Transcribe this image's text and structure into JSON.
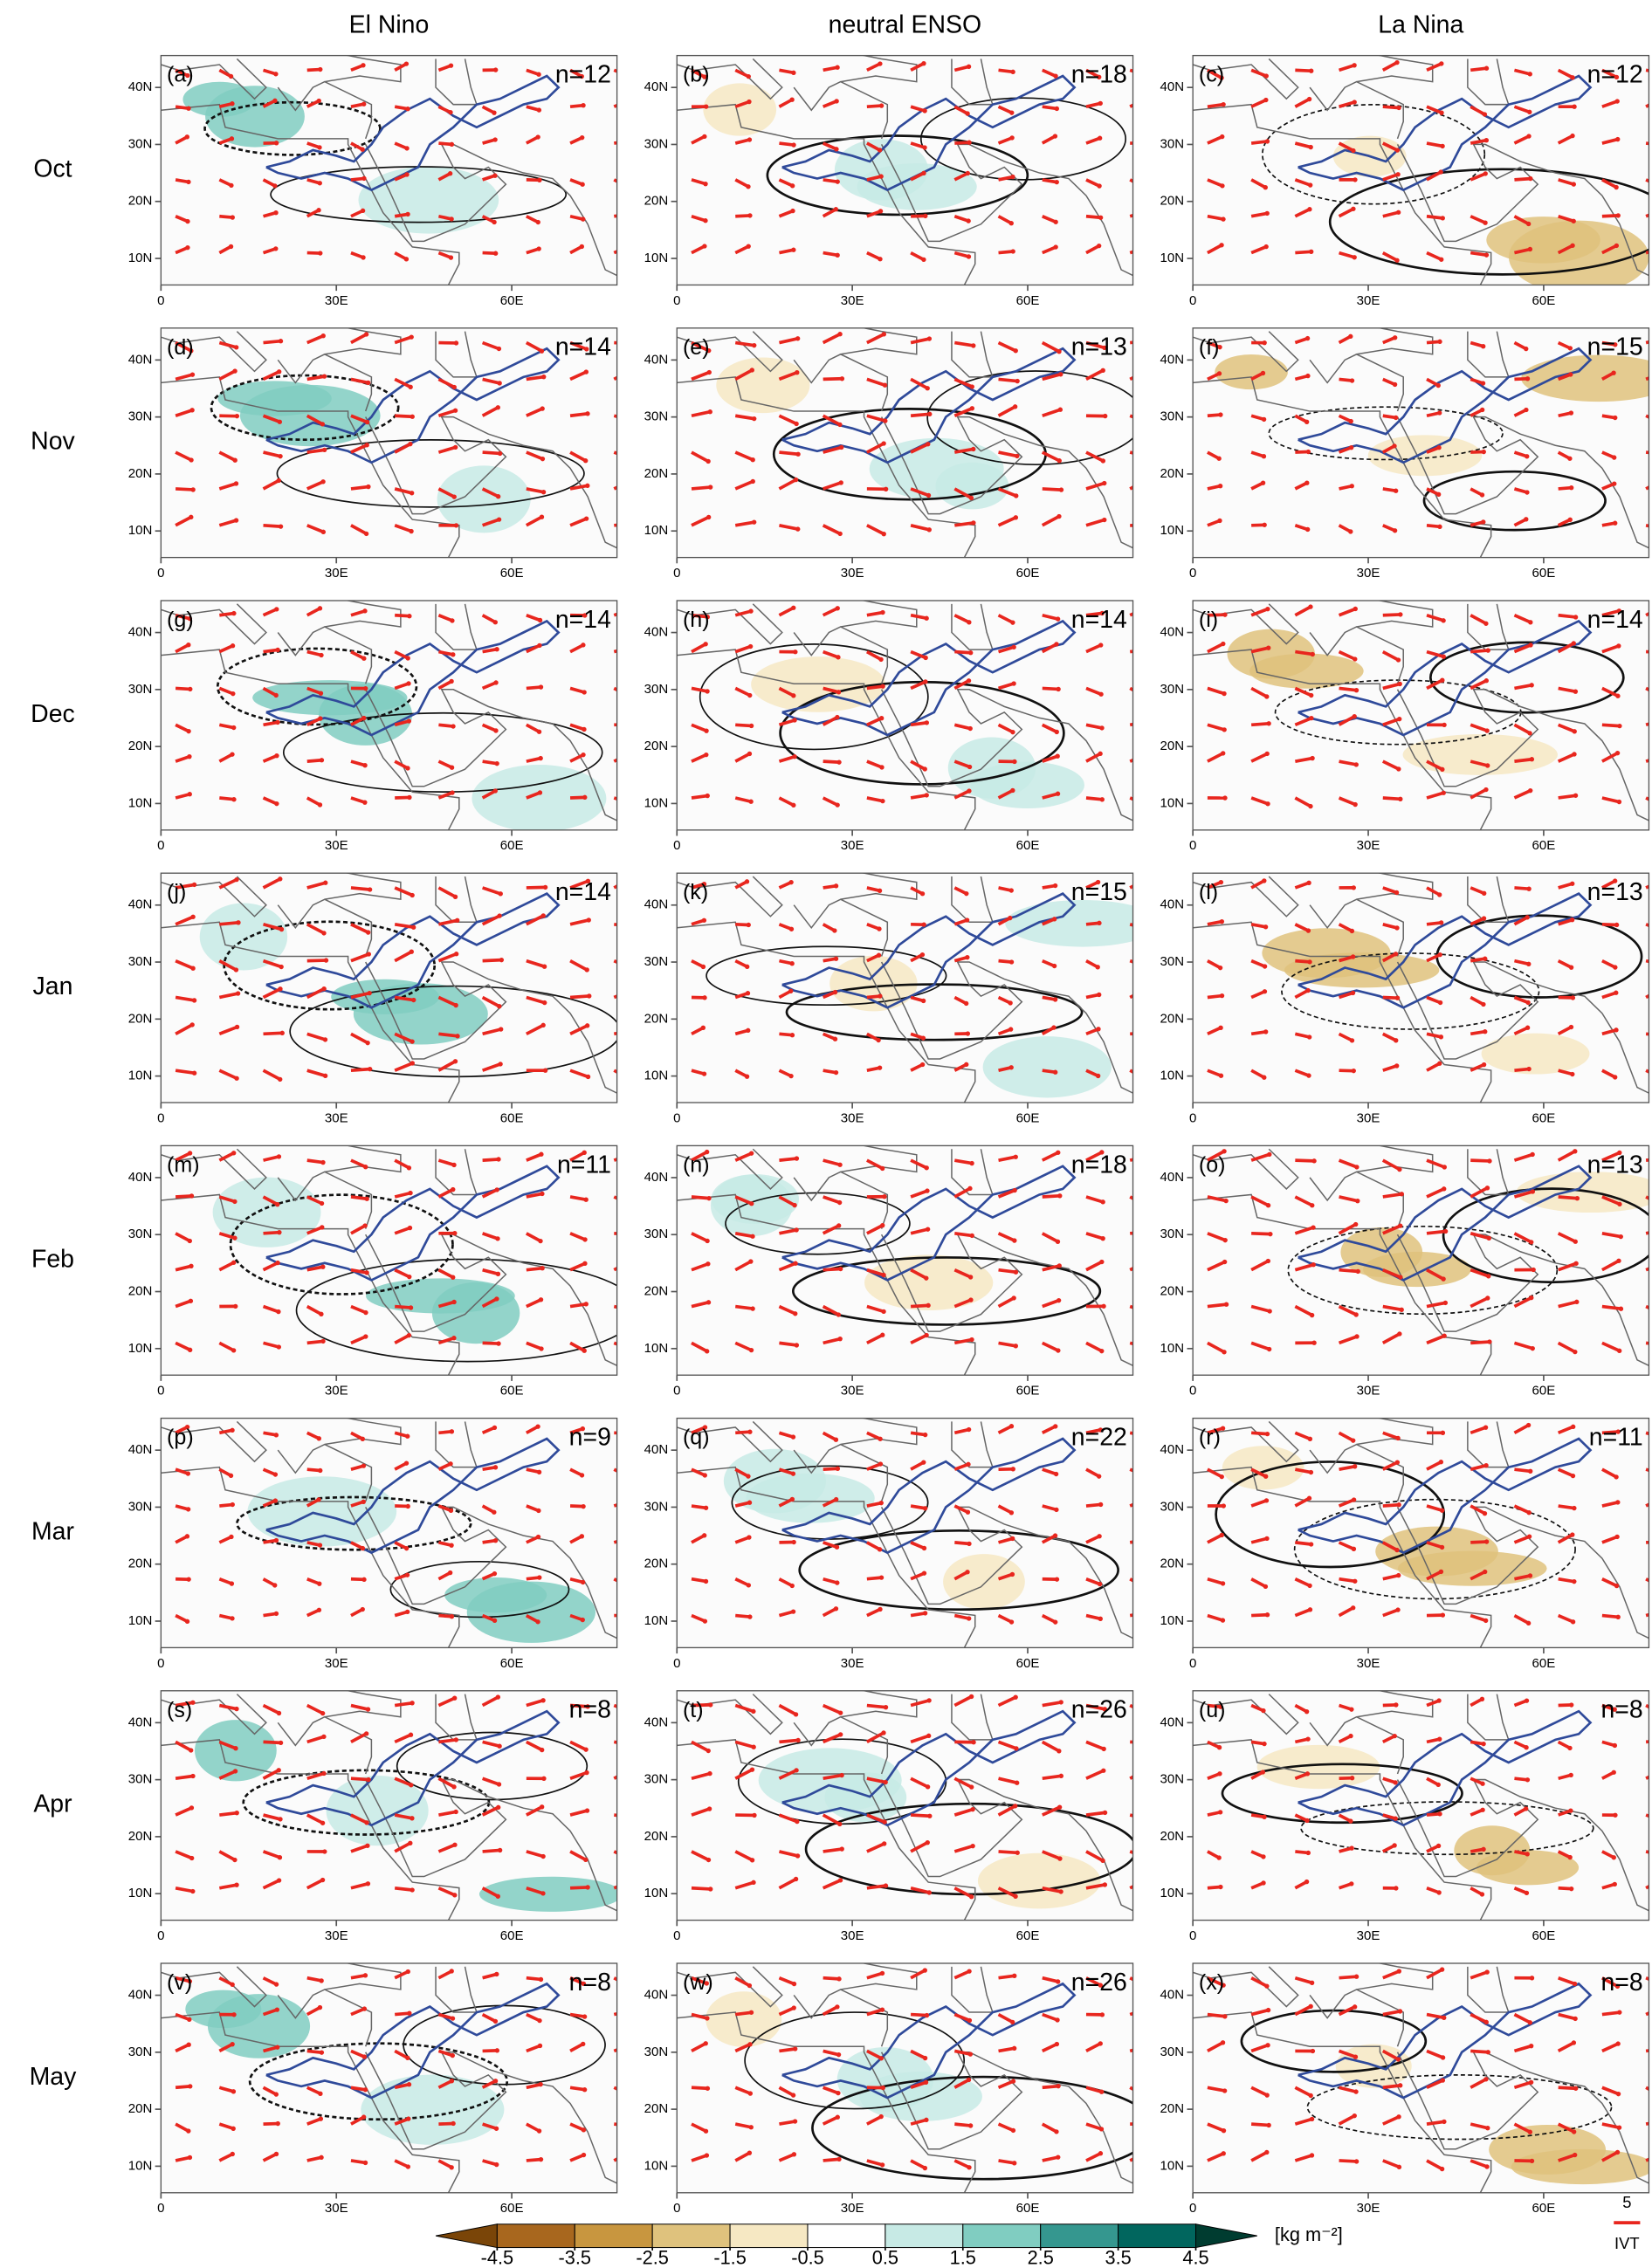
{
  "column_titles": [
    "El Nino",
    "neutral ENSO",
    "La Nina"
  ],
  "row_labels": [
    "Oct",
    "Nov",
    "Dec",
    "Jan",
    "Feb",
    "Mar",
    "Apr",
    "May"
  ],
  "panels": [
    [
      {
        "label": "(a)",
        "n": "n=12"
      },
      {
        "label": "(b)",
        "n": "n=18"
      },
      {
        "label": "(c)",
        "n": "n=12"
      }
    ],
    [
      {
        "label": "(d)",
        "n": "n=14"
      },
      {
        "label": "(e)",
        "n": "n=13"
      },
      {
        "label": "(f)",
        "n": "n=15"
      }
    ],
    [
      {
        "label": "(g)",
        "n": "n=14"
      },
      {
        "label": "(h)",
        "n": "n=14"
      },
      {
        "label": "(i)",
        "n": "n=14"
      }
    ],
    [
      {
        "label": "(j)",
        "n": "n=14"
      },
      {
        "label": "(k)",
        "n": "n=15"
      },
      {
        "label": "(l)",
        "n": "n=13"
      }
    ],
    [
      {
        "label": "(m)",
        "n": "n=11"
      },
      {
        "label": "(n)",
        "n": "n=18"
      },
      {
        "label": "(o)",
        "n": "n=13"
      }
    ],
    [
      {
        "label": "(p)",
        "n": "n=9"
      },
      {
        "label": "(q)",
        "n": "n=22"
      },
      {
        "label": "(r)",
        "n": "n=11"
      }
    ],
    [
      {
        "label": "(s)",
        "n": "n=8"
      },
      {
        "label": "(t)",
        "n": "n=26"
      },
      {
        "label": "(u)",
        "n": "n=8"
      }
    ],
    [
      {
        "label": "(v)",
        "n": "n=8"
      },
      {
        "label": "(w)",
        "n": "n=26"
      },
      {
        "label": "(x)",
        "n": "n=8"
      }
    ]
  ],
  "lat_ticks": [
    {
      "value": 40,
      "label": "40N"
    },
    {
      "value": 30,
      "label": "30N"
    },
    {
      "value": 20,
      "label": "20N"
    },
    {
      "value": 10,
      "label": "10N"
    }
  ],
  "lon_ticks": [
    {
      "value": 0,
      "label": "0"
    },
    {
      "value": 30,
      "label": "30E"
    },
    {
      "value": 60,
      "label": "60E"
    }
  ],
  "colorbar": {
    "ticks": [
      -4.5,
      -3.5,
      -2.5,
      -1.5,
      -0.5,
      0.5,
      1.5,
      2.5,
      3.5,
      4.5
    ],
    "colors": [
      "#7a4508",
      "#a8671e",
      "#c8963f",
      "#dfc27d",
      "#f6e8c3",
      "#ffffff",
      "#c7eae5",
      "#80cdc1",
      "#35978f",
      "#01665e",
      "#003c30"
    ],
    "unit": "[kg m⁻²]"
  },
  "reference_vector": {
    "magnitude": 5,
    "label": "IVT"
  }
}
